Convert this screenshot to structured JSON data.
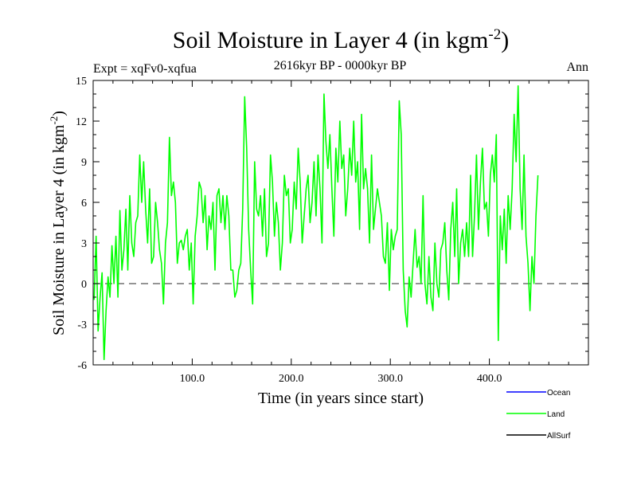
{
  "chart_data": {
    "type": "line",
    "title_main": "Soil Moisture in Layer 4 (in kgm",
    "title_sup": "-2",
    "title_close": ")",
    "subtitle": "2616kyr BP - 0000kyr BP",
    "left_label": "Expt = xqFv0-xqfua",
    "right_label": "Ann",
    "xlabel": "Time (in years since start)",
    "ylabel_main": "Soil Moisture in Layer 4 (in kgm",
    "ylabel_sup": "-2",
    "ylabel_close": ")",
    "xlim": [
      0,
      500
    ],
    "ylim": [
      -6,
      15
    ],
    "x_ticks": [
      {
        "value": 100,
        "label": "100.0"
      },
      {
        "value": 200,
        "label": "200.0"
      },
      {
        "value": 300,
        "label": "300.0"
      },
      {
        "value": 400,
        "label": "400.0"
      }
    ],
    "y_ticks": [
      {
        "value": -6,
        "label": "-6"
      },
      {
        "value": -3,
        "label": "-3"
      },
      {
        "value": 0,
        "label": "0"
      },
      {
        "value": 3,
        "label": "3"
      },
      {
        "value": 6,
        "label": "6"
      },
      {
        "value": 9,
        "label": "9"
      },
      {
        "value": 12,
        "label": "12"
      },
      {
        "value": 15,
        "label": "15"
      }
    ],
    "zero_line": {
      "value": 0,
      "style": "dashed",
      "color": "#555555"
    },
    "legend": [
      {
        "name": "Ocean",
        "color": "#0000ff"
      },
      {
        "name": "Land",
        "color": "#00ff00"
      },
      {
        "name": "AllSurf",
        "color": "#000000"
      }
    ],
    "series": [
      {
        "name": "Land",
        "color": "#00ff00",
        "x_start": 1,
        "x_step": 2,
        "values": [
          -1.2,
          3.5,
          -3.5,
          -1,
          0.8,
          -5.6,
          -2,
          0.5,
          -1,
          2.8,
          0,
          3.5,
          -1,
          5.4,
          1,
          2.5,
          5.5,
          1,
          6.5,
          3,
          2,
          4.5,
          5,
          9.5,
          6,
          9,
          5.5,
          3,
          7,
          1.5,
          2,
          6,
          4.5,
          2.5,
          1.5,
          -1.5,
          3,
          4.5,
          10.8,
          6.5,
          7.5,
          6,
          1.5,
          3,
          3.2,
          2.5,
          3.5,
          4,
          1,
          3,
          -1.5,
          3.5,
          5,
          7.5,
          7,
          4.5,
          6.5,
          2.5,
          5,
          4,
          6,
          1,
          6.5,
          7,
          4.5,
          6.5,
          4,
          6.5,
          5,
          1,
          1,
          -1,
          -0.5,
          1,
          1.5,
          5.5,
          13.8,
          10,
          4,
          1,
          -1.5,
          9,
          5.5,
          5,
          6.5,
          3.5,
          7,
          2,
          3,
          9.5,
          7.5,
          3.5,
          6,
          4.5,
          1,
          3,
          8,
          6.5,
          7,
          3,
          4,
          7.5,
          5.5,
          10,
          7.5,
          3,
          5,
          7,
          8,
          4.5,
          6,
          9,
          5,
          9.5,
          7,
          3,
          14,
          10.5,
          8.5,
          11,
          7,
          3.5,
          10,
          7.5,
          12,
          8.5,
          9.5,
          5,
          7,
          10,
          8,
          12,
          7.5,
          9,
          4,
          12.5,
          7,
          8.5,
          7,
          3,
          9.5,
          4,
          5.5,
          7,
          6,
          5,
          2,
          1.5,
          4.5,
          -0.5,
          4,
          2.5,
          3.5,
          4,
          13.5,
          11,
          1,
          -2,
          -3.2,
          0.5,
          -1,
          1.5,
          4,
          1.2,
          2,
          0,
          6.5,
          0,
          -1.5,
          2,
          -1,
          -2,
          3,
          0,
          -1,
          2.5,
          3,
          4.5,
          1,
          -1.2,
          4,
          6,
          2,
          7,
          0,
          3,
          4,
          2,
          4.5,
          2,
          8,
          2,
          5,
          9.5,
          4,
          7.5,
          10,
          5.5,
          6,
          3.5,
          8,
          9.5,
          7.5,
          11,
          -4.2,
          5,
          2.5,
          5.5,
          1.5,
          6.5,
          4,
          7,
          12.5,
          9,
          14.6,
          7,
          4,
          9.5,
          3.5,
          1.5,
          -2,
          2,
          0,
          5,
          8
        ]
      }
    ]
  }
}
